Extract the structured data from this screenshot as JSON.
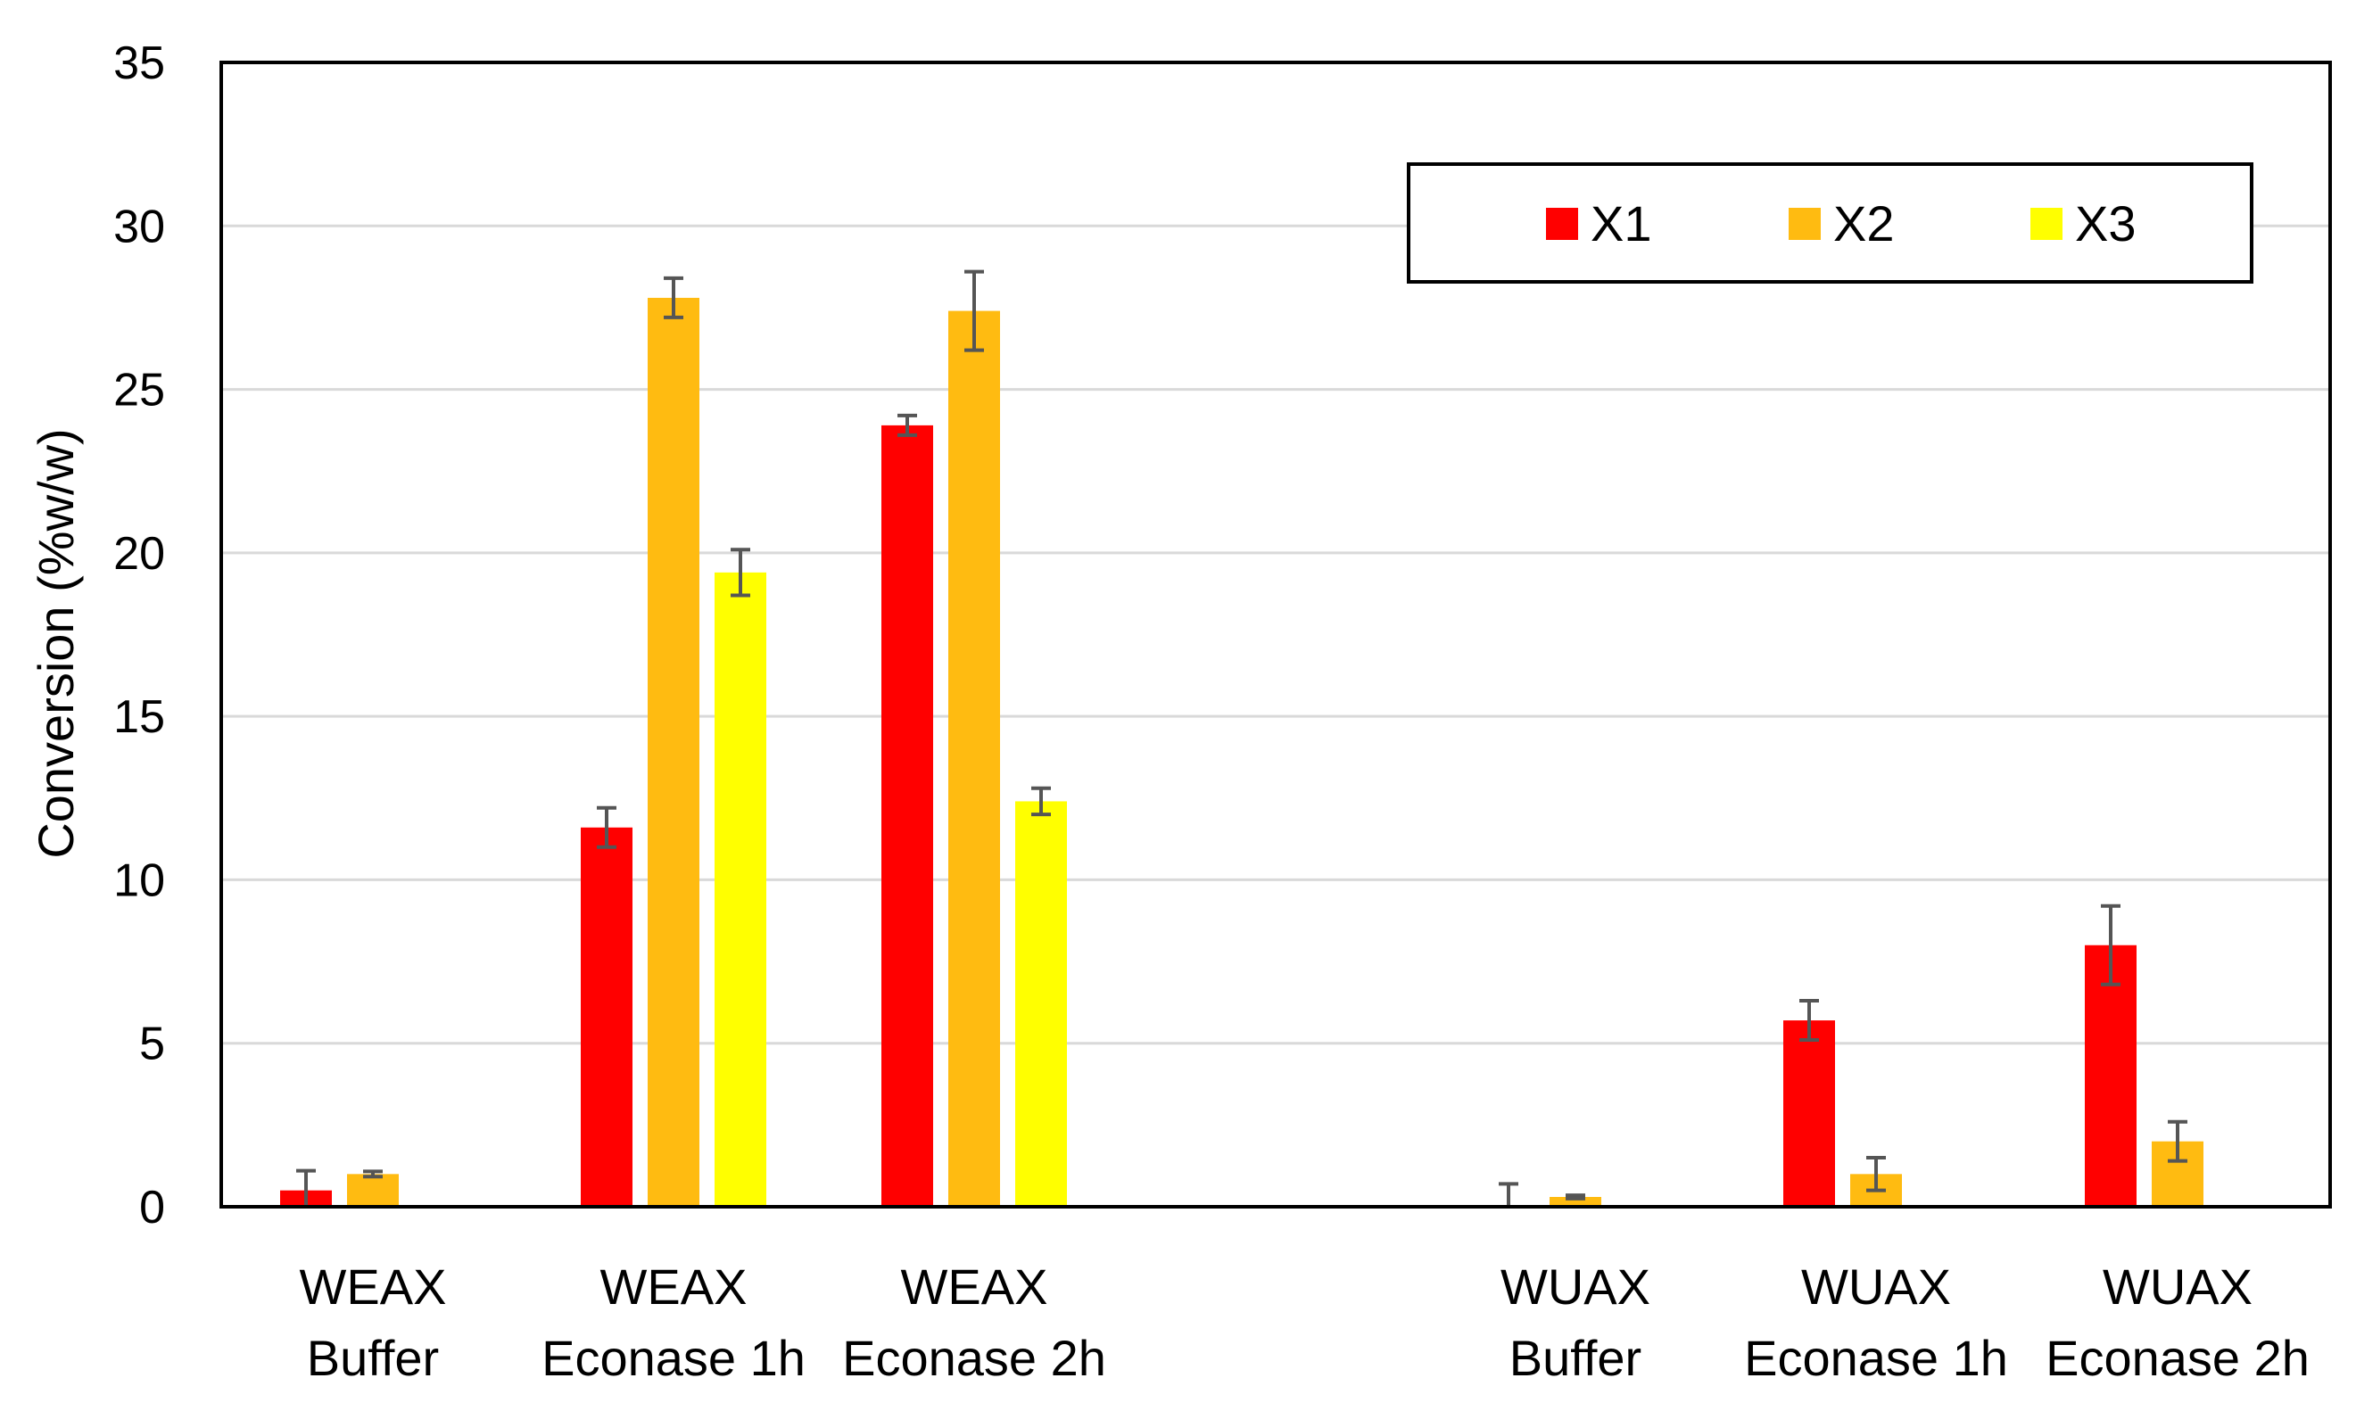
{
  "chart_data": {
    "type": "bar",
    "ylabel": "Conversion (%w/w)",
    "xlabel": "",
    "ylim": [
      0,
      35
    ],
    "yticks": [
      0,
      5,
      10,
      15,
      20,
      25,
      30,
      35
    ],
    "grid": true,
    "legend_position": "top-right",
    "categories": [
      [
        "WEAX",
        "Buffer"
      ],
      [
        "WEAX",
        "Econase 1h"
      ],
      [
        "WEAX",
        "Econase 2h"
      ],
      [
        "WUAX",
        "Buffer"
      ],
      [
        "WUAX",
        "Econase 1h"
      ],
      [
        "WUAX",
        "Econase 2h"
      ]
    ],
    "series": [
      {
        "name": "X1",
        "color": "#ff0000",
        "values": [
          0.5,
          11.6,
          23.9,
          0.0,
          5.7,
          8.0
        ],
        "errors": [
          0.6,
          0.6,
          0.3,
          0.7,
          0.6,
          1.2
        ]
      },
      {
        "name": "X2",
        "color": "#ffbb11",
        "values": [
          1.0,
          27.8,
          27.4,
          0.3,
          1.0,
          2.0
        ],
        "errors": [
          0.08,
          0.6,
          1.2,
          0.05,
          0.5,
          0.6
        ]
      },
      {
        "name": "X3",
        "color": "#ffff00",
        "values": [
          0.0,
          19.4,
          12.4,
          0.0,
          0.0,
          0.0
        ],
        "errors": [
          0.0,
          0.7,
          0.4,
          0.0,
          0.0,
          0.0
        ]
      }
    ]
  }
}
